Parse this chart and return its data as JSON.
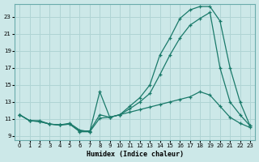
{
  "xlabel": "Humidex (Indice chaleur)",
  "background_color": "#cce8e8",
  "grid_color": "#b0d4d4",
  "line_color": "#1a7a6a",
  "xlim": [
    -0.5,
    23.5
  ],
  "ylim": [
    8.5,
    24.5
  ],
  "yticks": [
    9,
    11,
    13,
    15,
    17,
    19,
    21,
    23
  ],
  "xticks": [
    0,
    1,
    2,
    3,
    4,
    5,
    6,
    7,
    8,
    9,
    10,
    11,
    12,
    13,
    14,
    15,
    16,
    17,
    18,
    19,
    20,
    21,
    22,
    23
  ],
  "curve_flat_x": [
    0,
    1,
    2,
    3,
    4,
    5,
    6,
    7,
    8,
    9,
    10,
    11,
    12,
    13,
    14,
    15,
    16,
    17,
    18,
    19,
    20,
    21,
    22,
    23
  ],
  "curve_flat_y": [
    11.5,
    10.8,
    10.7,
    10.4,
    10.3,
    10.4,
    9.5,
    9.5,
    11.1,
    11.2,
    11.5,
    11.8,
    12.1,
    12.4,
    12.7,
    13.0,
    13.3,
    13.6,
    14.2,
    13.8,
    12.5,
    11.2,
    10.5,
    10.0
  ],
  "curve_mid_x": [
    0,
    1,
    2,
    3,
    4,
    5,
    6,
    7,
    8,
    9,
    10,
    11,
    12,
    13,
    14,
    15,
    16,
    17,
    18,
    19,
    20,
    21,
    22,
    23
  ],
  "curve_mid_y": [
    11.5,
    10.8,
    10.7,
    10.4,
    10.3,
    10.4,
    9.6,
    9.6,
    11.5,
    11.2,
    11.5,
    12.2,
    13.0,
    14.0,
    16.2,
    18.5,
    20.5,
    22.0,
    22.8,
    23.5,
    17.0,
    13.0,
    11.5,
    10.2
  ],
  "curve_high_x": [
    0,
    1,
    2,
    3,
    4,
    5,
    6,
    7,
    8,
    9,
    10,
    11,
    12,
    13,
    14,
    15,
    16,
    17,
    18,
    19,
    20,
    21,
    22,
    23
  ],
  "curve_high_y": [
    11.5,
    10.8,
    10.8,
    10.4,
    10.3,
    10.5,
    9.7,
    9.5,
    14.2,
    11.2,
    11.5,
    12.5,
    13.5,
    15.0,
    18.5,
    20.5,
    22.8,
    23.8,
    24.2,
    24.2,
    22.5,
    17.0,
    13.0,
    10.2
  ]
}
